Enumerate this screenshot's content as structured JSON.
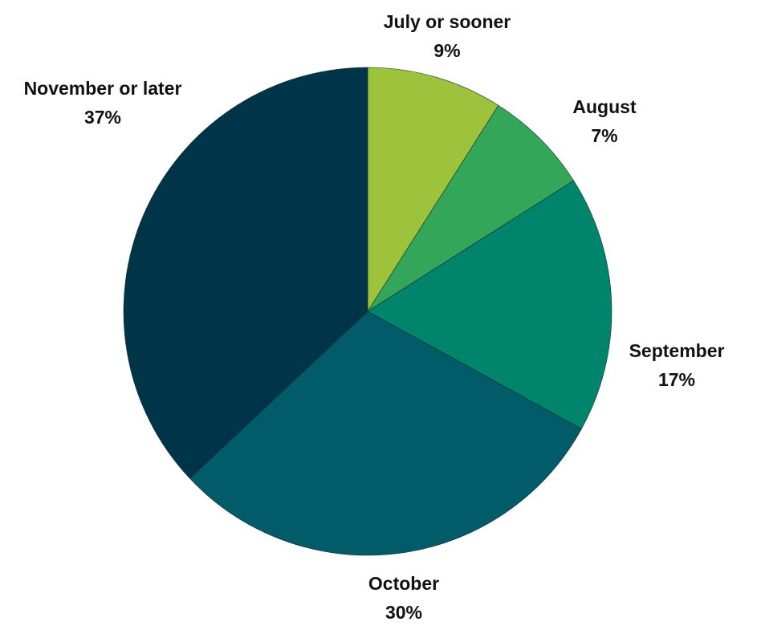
{
  "chart_data": {
    "type": "pie",
    "title": "",
    "start_angle": "top",
    "direction": "clockwise",
    "slices": [
      {
        "label": "July or sooner",
        "value": 9,
        "value_label": "9%",
        "color": "#9DC23B"
      },
      {
        "label": "August",
        "value": 7,
        "value_label": "7%",
        "color": "#34A65A"
      },
      {
        "label": "September",
        "value": 17,
        "value_label": "17%",
        "color": "#00846C"
      },
      {
        "label": "October",
        "value": 30,
        "value_label": "30%",
        "color": "#025B68"
      },
      {
        "label": "November or later",
        "value": 37,
        "value_label": "37%",
        "color": "#003549"
      }
    ]
  }
}
